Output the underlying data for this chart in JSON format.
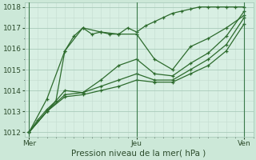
{
  "title": "",
  "xlabel": "Pression niveau de la mer( hPa )",
  "bg_color": "#cce8d8",
  "plot_bg_color": "#d8efe3",
  "grid_major_color": "#aaccbb",
  "grid_minor_color": "#c4ddd0",
  "line_color": "#2d6b2d",
  "marker": "+",
  "ylim": [
    1011.8,
    1018.2
  ],
  "yticks": [
    1012,
    1013,
    1014,
    1015,
    1016,
    1017,
    1018
  ],
  "xtick_labels": [
    "Mer",
    "Jeu",
    "Ven"
  ],
  "xtick_positions": [
    0,
    24,
    48
  ],
  "xlim": [
    -1,
    50
  ],
  "series": [
    [
      0,
      1012.0
    ],
    [
      2,
      1012.6
    ],
    [
      4,
      1013.1
    ],
    [
      6,
      1013.5
    ],
    [
      8,
      1015.9
    ],
    [
      10,
      1016.6
    ],
    [
      12,
      1017.0
    ],
    [
      14,
      1016.7
    ],
    [
      16,
      1016.8
    ],
    [
      18,
      1016.7
    ],
    [
      20,
      1016.7
    ],
    [
      22,
      1017.0
    ],
    [
      24,
      1016.8
    ],
    [
      26,
      1017.1
    ],
    [
      28,
      1017.3
    ],
    [
      30,
      1017.5
    ],
    [
      32,
      1017.7
    ],
    [
      34,
      1017.8
    ],
    [
      36,
      1017.9
    ],
    [
      38,
      1018.0
    ],
    [
      40,
      1018.0
    ],
    [
      42,
      1018.0
    ],
    [
      44,
      1018.0
    ],
    [
      46,
      1018.0
    ],
    [
      48,
      1018.0
    ]
  ],
  "series2": [
    [
      0,
      1012.0
    ],
    [
      4,
      1013.6
    ],
    [
      8,
      1015.9
    ],
    [
      12,
      1017.0
    ],
    [
      16,
      1016.8
    ],
    [
      20,
      1016.7
    ],
    [
      24,
      1016.7
    ],
    [
      28,
      1015.5
    ],
    [
      32,
      1015.0
    ],
    [
      36,
      1016.1
    ],
    [
      40,
      1016.5
    ],
    [
      44,
      1017.0
    ],
    [
      48,
      1017.6
    ]
  ],
  "series3": [
    [
      0,
      1012.0
    ],
    [
      4,
      1013.0
    ],
    [
      8,
      1014.0
    ],
    [
      12,
      1013.9
    ],
    [
      16,
      1014.5
    ],
    [
      20,
      1015.2
    ],
    [
      24,
      1015.5
    ],
    [
      28,
      1014.8
    ],
    [
      32,
      1014.7
    ],
    [
      36,
      1015.3
    ],
    [
      40,
      1015.8
    ],
    [
      44,
      1016.6
    ],
    [
      48,
      1017.8
    ]
  ],
  "series4": [
    [
      0,
      1012.0
    ],
    [
      4,
      1013.0
    ],
    [
      8,
      1013.8
    ],
    [
      12,
      1013.9
    ],
    [
      16,
      1014.2
    ],
    [
      20,
      1014.5
    ],
    [
      24,
      1014.8
    ],
    [
      28,
      1014.5
    ],
    [
      32,
      1014.5
    ],
    [
      36,
      1015.0
    ],
    [
      40,
      1015.5
    ],
    [
      44,
      1016.2
    ],
    [
      48,
      1017.5
    ]
  ],
  "series5": [
    [
      0,
      1012.0
    ],
    [
      4,
      1013.0
    ],
    [
      8,
      1013.7
    ],
    [
      12,
      1013.8
    ],
    [
      16,
      1014.0
    ],
    [
      20,
      1014.2
    ],
    [
      24,
      1014.5
    ],
    [
      28,
      1014.4
    ],
    [
      32,
      1014.4
    ],
    [
      36,
      1014.8
    ],
    [
      40,
      1015.2
    ],
    [
      44,
      1015.9
    ],
    [
      48,
      1017.2
    ]
  ],
  "vline_color": "#3a7a4a",
  "xlabel_fontsize": 7.5,
  "tick_fontsize": 6.5
}
